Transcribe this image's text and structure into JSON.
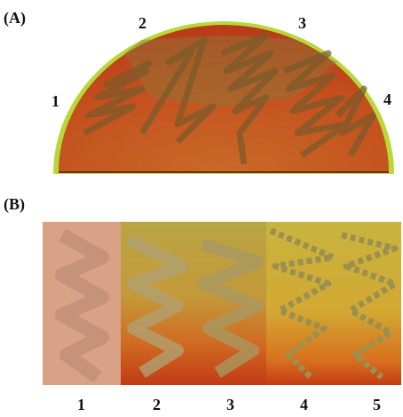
{
  "panel_a": {
    "label": "(A)",
    "sector_labels": [
      "1",
      "2",
      "3",
      "4"
    ]
  },
  "panel_b": {
    "label": "(B)",
    "strip_labels": [
      "1",
      "2",
      "3",
      "4",
      "5"
    ]
  }
}
